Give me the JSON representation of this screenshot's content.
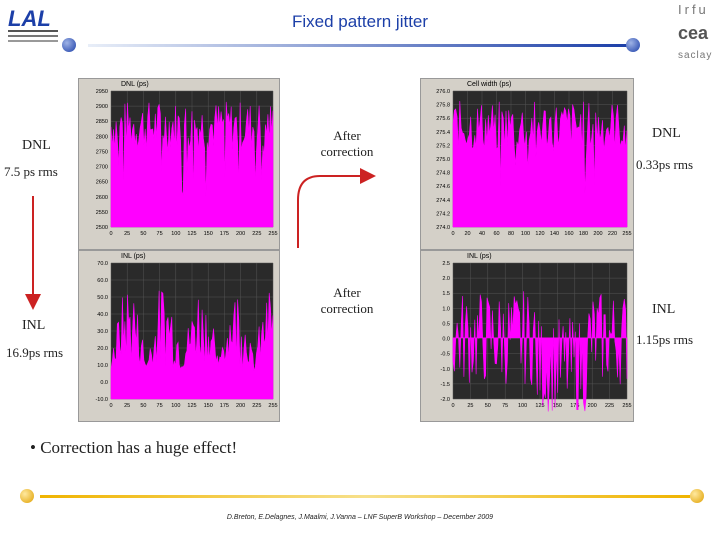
{
  "slide": {
    "title": "Fixed pattern jitter",
    "left_top": {
      "name": "DNL",
      "rms": "7.5 ps rms"
    },
    "left_bottom": {
      "name": "INL",
      "rms": "16.9ps rms"
    },
    "arrow_top": "After\ncorrection",
    "arrow_bottom": "After\ncorrection",
    "right_top": {
      "name": "DNL",
      "rms": "0.33ps rms"
    },
    "right_bottom": {
      "name": "INL",
      "rms": "1.15ps rms"
    },
    "bullet": "Correction has a huge effect!",
    "footer": "D.Breton, E.Delagnes, J.Maalmi, J.Vanna – LNF SuperB Workshop – December 2009"
  },
  "charts": {
    "dnl_before": {
      "title": "DNL (ps)",
      "yticks": [
        "2950",
        "2900",
        "2850",
        "2800",
        "2750",
        "2700",
        "2650",
        "2600",
        "2550",
        "2500"
      ],
      "xticks": [
        "0",
        "25",
        "50",
        "75",
        "100",
        "125",
        "150",
        "175",
        "200",
        "225",
        "255"
      ]
    },
    "inl_before": {
      "title": "INL (ps)",
      "yticks": [
        "70.0",
        "60.0",
        "50.0",
        "40.0",
        "30.0",
        "20.0",
        "10.0",
        "0.0",
        "-10.0"
      ],
      "xticks": [
        "0",
        "25",
        "50",
        "75",
        "100",
        "125",
        "150",
        "175",
        "200",
        "225",
        "255"
      ]
    },
    "dnl_after": {
      "title": "Cell width (ps)",
      "yticks": [
        "276.0",
        "275.8",
        "275.6",
        "275.4",
        "275.2",
        "275.0",
        "274.8",
        "274.6",
        "274.4",
        "274.2",
        "274.0"
      ],
      "xticks": [
        "0",
        "20",
        "40",
        "60",
        "80",
        "100",
        "120",
        "140",
        "160",
        "180",
        "200",
        "220",
        "255"
      ]
    },
    "inl_after": {
      "title": "INL (ps)",
      "yticks": [
        "2.5",
        "2.0",
        "1.5",
        "1.0",
        "0.5",
        "0.0",
        "-0.5",
        "-1.0",
        "-1.5",
        "-2.0"
      ],
      "xticks": [
        "0",
        "25",
        "50",
        "75",
        "100",
        "125",
        "150",
        "175",
        "200",
        "225",
        "255"
      ]
    }
  },
  "colors": {
    "signal": "#ff00ff",
    "title": "#1c3fa8",
    "arrow": "#cc2222",
    "rule": "#1c3fa8",
    "dot_gold": "#f0b400",
    "dot_blue": "#1c3fa8"
  },
  "logos": {
    "left": "lal-logo",
    "right": "irfu-cea-saclay-logo",
    "right_text": [
      "Irfu",
      "cea",
      "saclay"
    ]
  }
}
